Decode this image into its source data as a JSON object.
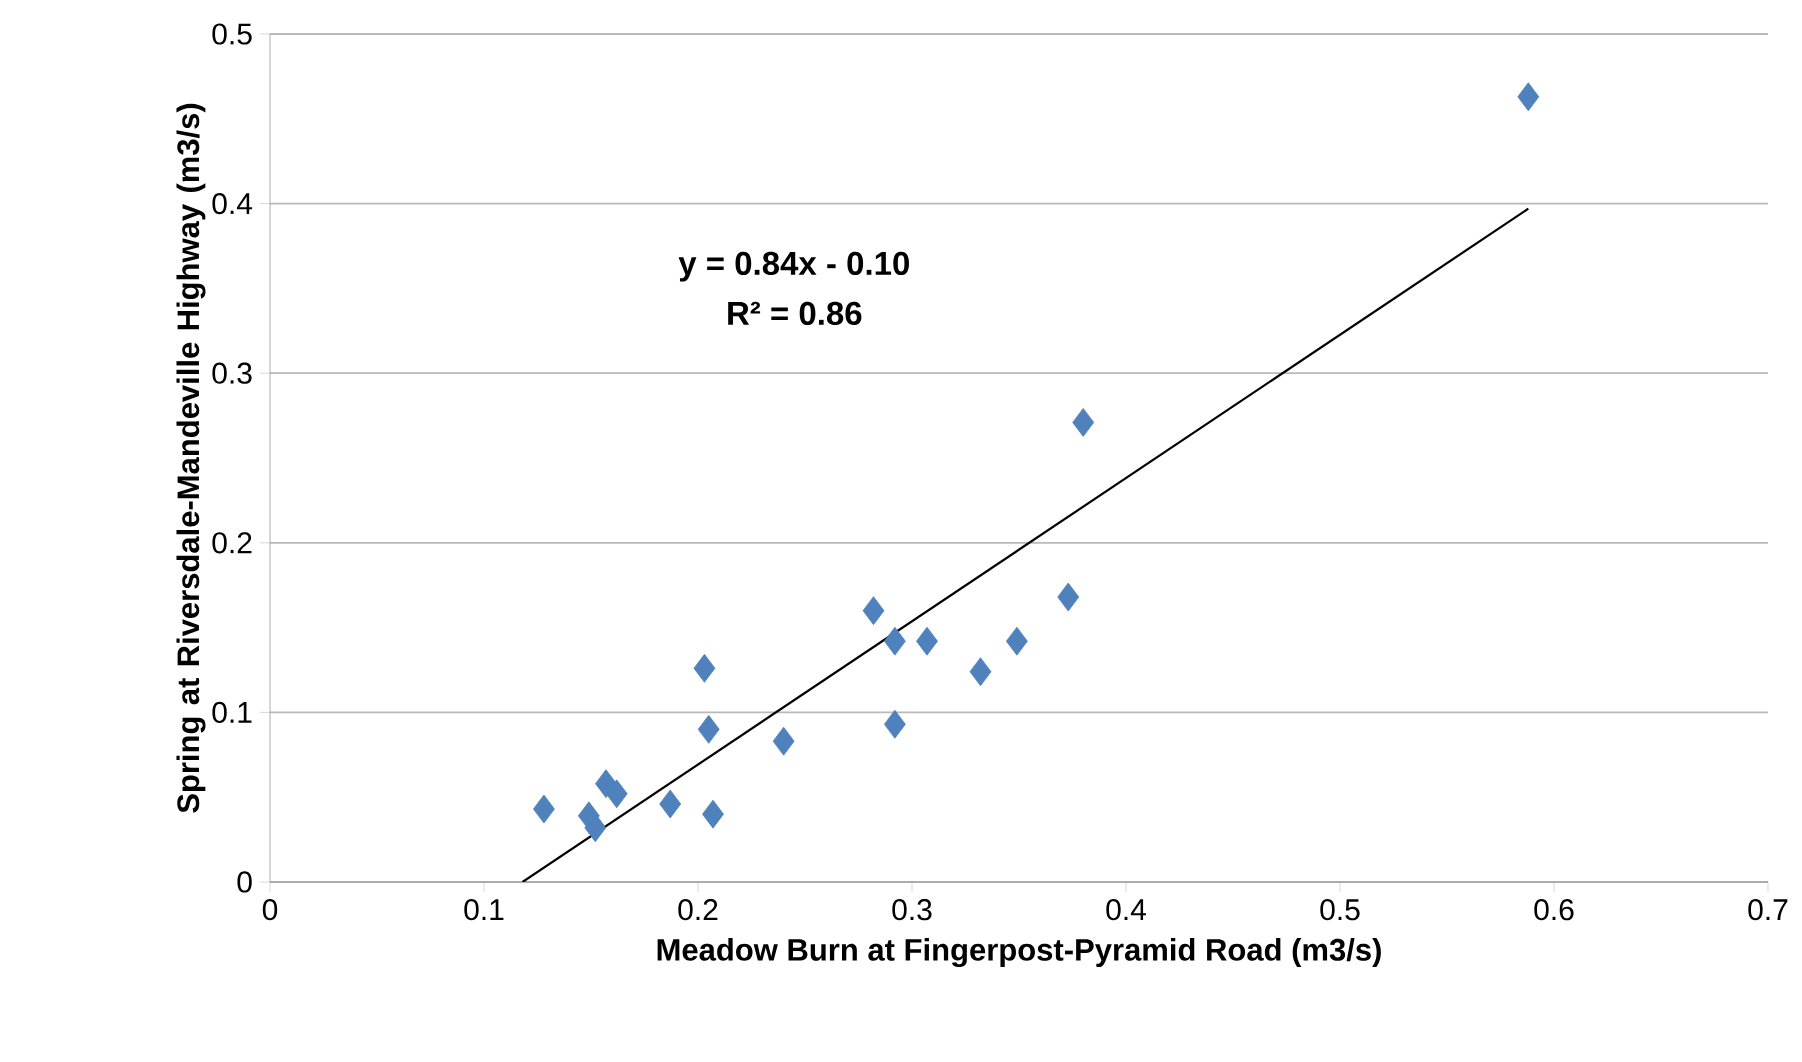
{
  "chart_data": {
    "type": "scatter",
    "xlabel": "Meadow Burn at Fingerpost-Pyramid Road (m3/s)",
    "ylabel": "Spring at Riversdale-Mandeville Highway (m3/s)",
    "annotations": [
      "y = 0.84x - 0.10",
      "R² = 0.86"
    ],
    "xlim": [
      0,
      0.7
    ],
    "xticks": [
      0,
      0.1,
      0.2,
      0.3,
      0.4,
      0.5,
      0.6,
      0.7
    ],
    "ylim": [
      0,
      0.5
    ],
    "yticks": [
      0,
      0.1,
      0.2,
      0.3,
      0.4,
      0.5
    ],
    "grid": "y",
    "series": [
      {
        "marker": "diamond",
        "color": "#4f81bd",
        "x": [
          0.128,
          0.149,
          0.152,
          0.157,
          0.162,
          0.187,
          0.203,
          0.205,
          0.207,
          0.24,
          0.282,
          0.292,
          0.292,
          0.307,
          0.332,
          0.349,
          0.373,
          0.38,
          0.588
        ],
        "values": [
          0.043,
          0.039,
          0.032,
          0.058,
          0.052,
          0.046,
          0.126,
          0.09,
          0.04,
          0.083,
          0.16,
          0.142,
          0.093,
          0.142,
          0.124,
          0.142,
          0.168,
          0.271,
          0.463
        ]
      },
      {
        "type": "line",
        "marker": "none",
        "color": "#000000",
        "x": [
          0.118,
          0.588
        ],
        "values": [
          0,
          0.397
        ]
      }
    ]
  }
}
